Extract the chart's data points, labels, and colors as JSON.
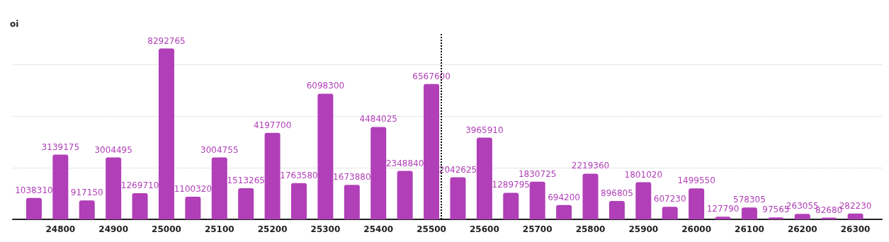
{
  "chart_data": {
    "type": "bar",
    "ylabel": "oi",
    "x": [
      24750,
      24800,
      24850,
      24900,
      24950,
      25000,
      25050,
      25100,
      25150,
      25200,
      25250,
      25300,
      25350,
      25400,
      25450,
      25500,
      25550,
      25600,
      25650,
      25700,
      25750,
      25800,
      25850,
      25900,
      25950,
      26000,
      26050,
      26100,
      26150,
      26200,
      26250,
      26300
    ],
    "values": [
      1038310,
      3139175,
      917150,
      3004495,
      1269710,
      8292765,
      1100320,
      3004755,
      1513265,
      4197700,
      1763580,
      6098300,
      1673880,
      4484025,
      2348840,
      6567600,
      2042625,
      3965910,
      1289795,
      1830725,
      694200,
      2219360,
      896805,
      1801020,
      607230,
      1499550,
      127790,
      578305,
      97565,
      263055,
      82680,
      282230
    ],
    "color": "#b03fb8",
    "data_labels": true,
    "xlim": [
      24710,
      26350
    ],
    "xticks": [
      24800,
      24900,
      25000,
      25100,
      25200,
      25300,
      25400,
      25500,
      25600,
      25700,
      25800,
      25900,
      26000,
      26100,
      26200,
      26300
    ],
    "ylim": [
      0,
      9000000
    ],
    "yticks": [
      {
        "value": 0,
        "label": null
      },
      {
        "value": 2500000,
        "label": null
      },
      {
        "value": 5000000,
        "label": null
      },
      {
        "value": 7500000,
        "label": null
      }
    ],
    "tick_labels": "x",
    "grid": "y",
    "ref_lines": [
      {
        "axis": "x",
        "value": 25518,
        "line_style": "dotted",
        "color": "#000000"
      }
    ]
  }
}
